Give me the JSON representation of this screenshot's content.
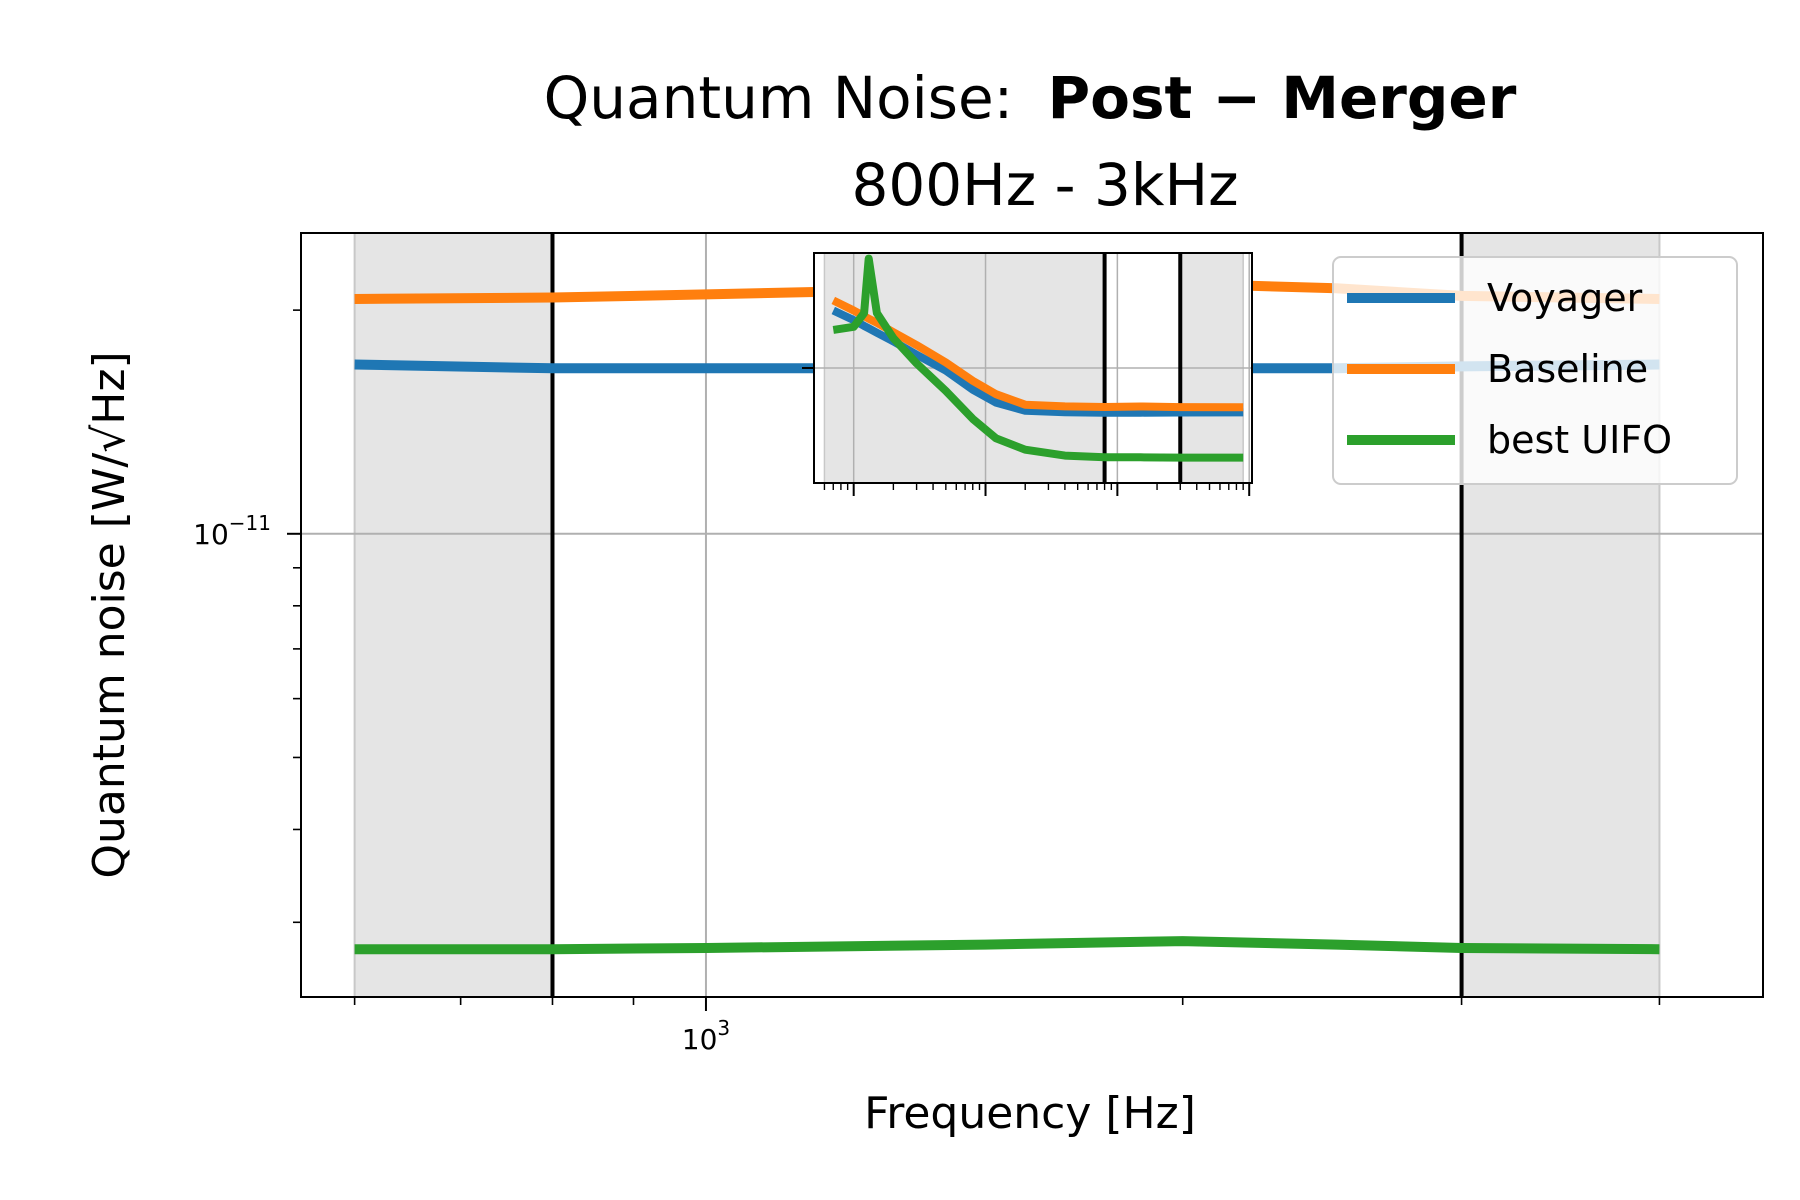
{
  "chart_data": {
    "type": "line",
    "title": "Quantum Noise:",
    "title_bold": "Post − Merger",
    "subtitle": "800Hz - 3kHz",
    "xlabel": "Frequency [Hz]",
    "ylabel": "Quantum noise [W/√Hz]",
    "x_scale": "log",
    "y_scale": "log",
    "xlim": [
      555,
      4650
    ],
    "ylim": [
      2.38e-12,
      2.54e-11
    ],
    "x_ticks": [
      {
        "value": 1000,
        "base": "10",
        "exp": "3"
      }
    ],
    "y_ticks": [
      {
        "value": 1e-11,
        "base": "10",
        "exp": "−11"
      }
    ],
    "grid": true,
    "legend_position": "top-right",
    "shaded_bands_hz": [
      [
        600,
        800
      ],
      [
        3000,
        4000
      ]
    ],
    "vertical_lines_hz": [
      800,
      3000
    ],
    "x": [
      600,
      800,
      1000,
      1500,
      2000,
      2500,
      3000,
      4000
    ],
    "series": [
      {
        "name": "Voyager",
        "color": "#1f77b4",
        "values": [
          1.69e-11,
          1.67e-11,
          1.67e-11,
          1.67e-11,
          1.67e-11,
          1.67e-11,
          1.68e-11,
          1.69e-11
        ]
      },
      {
        "name": "Baseline",
        "color": "#ff7f0e",
        "values": [
          2.07e-11,
          2.08e-11,
          2.1e-11,
          2.14e-11,
          2.17e-11,
          2.14e-11,
          2.09e-11,
          2.07e-11
        ]
      },
      {
        "name": "best UIFO",
        "color": "#2ca02c",
        "values": [
          2.76e-12,
          2.76e-12,
          2.77e-12,
          2.8e-12,
          2.83e-12,
          2.8e-12,
          2.77e-12,
          2.76e-12
        ]
      }
    ],
    "inset": {
      "xlim": [
        5,
        10500
      ],
      "ylim": [
        1e-12,
        1e-08
      ],
      "shaded_bands_hz": [
        [
          6,
          800
        ],
        [
          3000,
          9000
        ]
      ],
      "vertical_lines_hz": [
        800,
        3000
      ],
      "x": [
        7,
        10,
        12,
        13,
        15,
        20,
        30,
        50,
        80,
        120,
        200,
        400,
        800,
        1500,
        3000,
        9000
      ],
      "series": [
        {
          "name": "Voyager",
          "color": "#1f77b4",
          "values": [
            1e-09,
            6.8e-10,
            5.4e-10,
            4.9e-10,
            4.1e-10,
            2.9e-10,
            1.7e-10,
            9e-11,
            4.2e-11,
            2.5e-11,
            1.8e-11,
            1.7e-11,
            1.67e-11,
            1.67e-11,
            1.68e-11,
            1.69e-11
          ]
        },
        {
          "name": "Baseline",
          "color": "#ff7f0e",
          "values": [
            1.5e-09,
            1e-09,
            8e-10,
            7.2e-10,
            6.1e-10,
            4.2e-10,
            2.5e-10,
            1.25e-10,
            6e-11,
            3.5e-11,
            2.3e-11,
            2.15e-11,
            2.1e-11,
            2.14e-11,
            2.09e-11,
            2.07e-11
          ]
        },
        {
          "name": "best UIFO",
          "color": "#2ca02c",
          "values": [
            4.6e-10,
            5.2e-10,
            9e-10,
            8e-09,
            9e-10,
            3.3e-10,
            1.2e-10,
            4e-11,
            1.3e-11,
            6e-12,
            3.8e-12,
            3e-12,
            2.8e-12,
            2.8e-12,
            2.77e-12,
            2.76e-12
          ]
        }
      ]
    }
  }
}
